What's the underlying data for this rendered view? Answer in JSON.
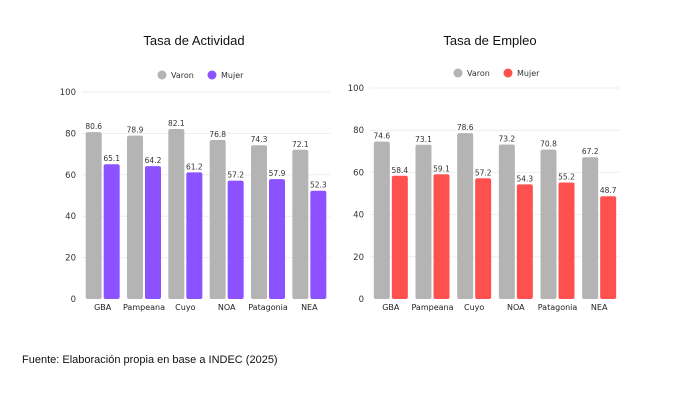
{
  "chart_data": [
    {
      "type": "bar",
      "title": "Tasa de Actividad",
      "categories": [
        "GBA",
        "Pampeana",
        "Cuyo",
        "NOA",
        "Patagonia",
        "NEA"
      ],
      "series": [
        {
          "name": "Varon",
          "color": "#b4b4b4",
          "values": [
            80.6,
            78.9,
            82.1,
            76.8,
            74.3,
            72.1
          ]
        },
        {
          "name": "Mujer",
          "color": "#8c52ff",
          "values": [
            65.1,
            64.2,
            61.2,
            57.2,
            57.9,
            52.3
          ]
        }
      ],
      "yticks": [
        0,
        20,
        40,
        60,
        80,
        100
      ],
      "ylim": [
        0,
        100
      ],
      "grid": true,
      "legend": "top-center"
    },
    {
      "type": "bar",
      "title": "Tasa de Empleo",
      "categories": [
        "GBA",
        "Pampeana",
        "Cuyo",
        "NOA",
        "Patagonia",
        "NEA"
      ],
      "series": [
        {
          "name": "Varon",
          "color": "#b4b4b4",
          "values": [
            74.6,
            73.1,
            78.6,
            73.2,
            70.8,
            67.2
          ]
        },
        {
          "name": "Mujer",
          "color": "#ff5050",
          "values": [
            58.4,
            59.1,
            57.2,
            54.3,
            55.2,
            48.7
          ]
        }
      ],
      "yticks": [
        0,
        20,
        40,
        60,
        80,
        100
      ],
      "ylim": [
        0,
        100
      ],
      "grid": true,
      "legend": "top-center"
    }
  ],
  "caption": "Fuente: Elaboración propia en base a INDEC (2025)"
}
